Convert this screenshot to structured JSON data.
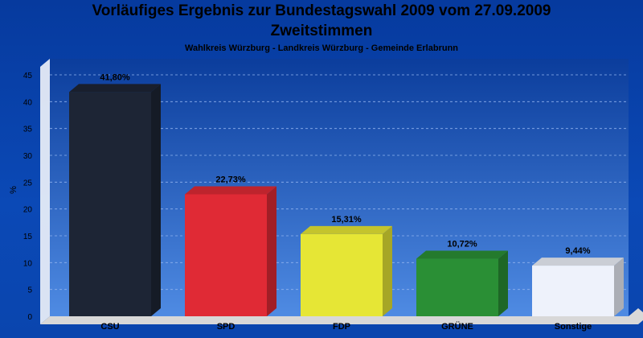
{
  "title": "Vorläufiges Ergebnis zur Bundestagswahl 2009 vom 27.09.2009",
  "subtitle": "Zweitstimmen",
  "subsubtitle": "Wahlkreis Würzburg - Landkreis Würzburg - Gemeinde Erlabrunn",
  "chart_data": {
    "type": "bar",
    "title": "Vorläufiges Ergebnis zur Bundestagswahl 2009 vom 27.09.2009",
    "subtitle": "Zweitstimmen",
    "xlabel": "",
    "ylabel": "%",
    "ylim": [
      0,
      45
    ],
    "yticks": [
      0,
      5,
      10,
      15,
      20,
      25,
      30,
      35,
      40,
      45
    ],
    "grid": true,
    "categories": [
      "CSU",
      "SPD",
      "FDP",
      "GRÜNE",
      "Sonstige"
    ],
    "values": [
      41.8,
      22.73,
      15.31,
      10.72,
      9.44
    ],
    "value_labels": [
      "41,80%",
      "22,73%",
      "15,31%",
      "10,72%",
      "9,44%"
    ],
    "colors": [
      "#1d2535",
      "#e02a35",
      "#e6e635",
      "#2a8f35",
      "#eef2fb"
    ]
  }
}
